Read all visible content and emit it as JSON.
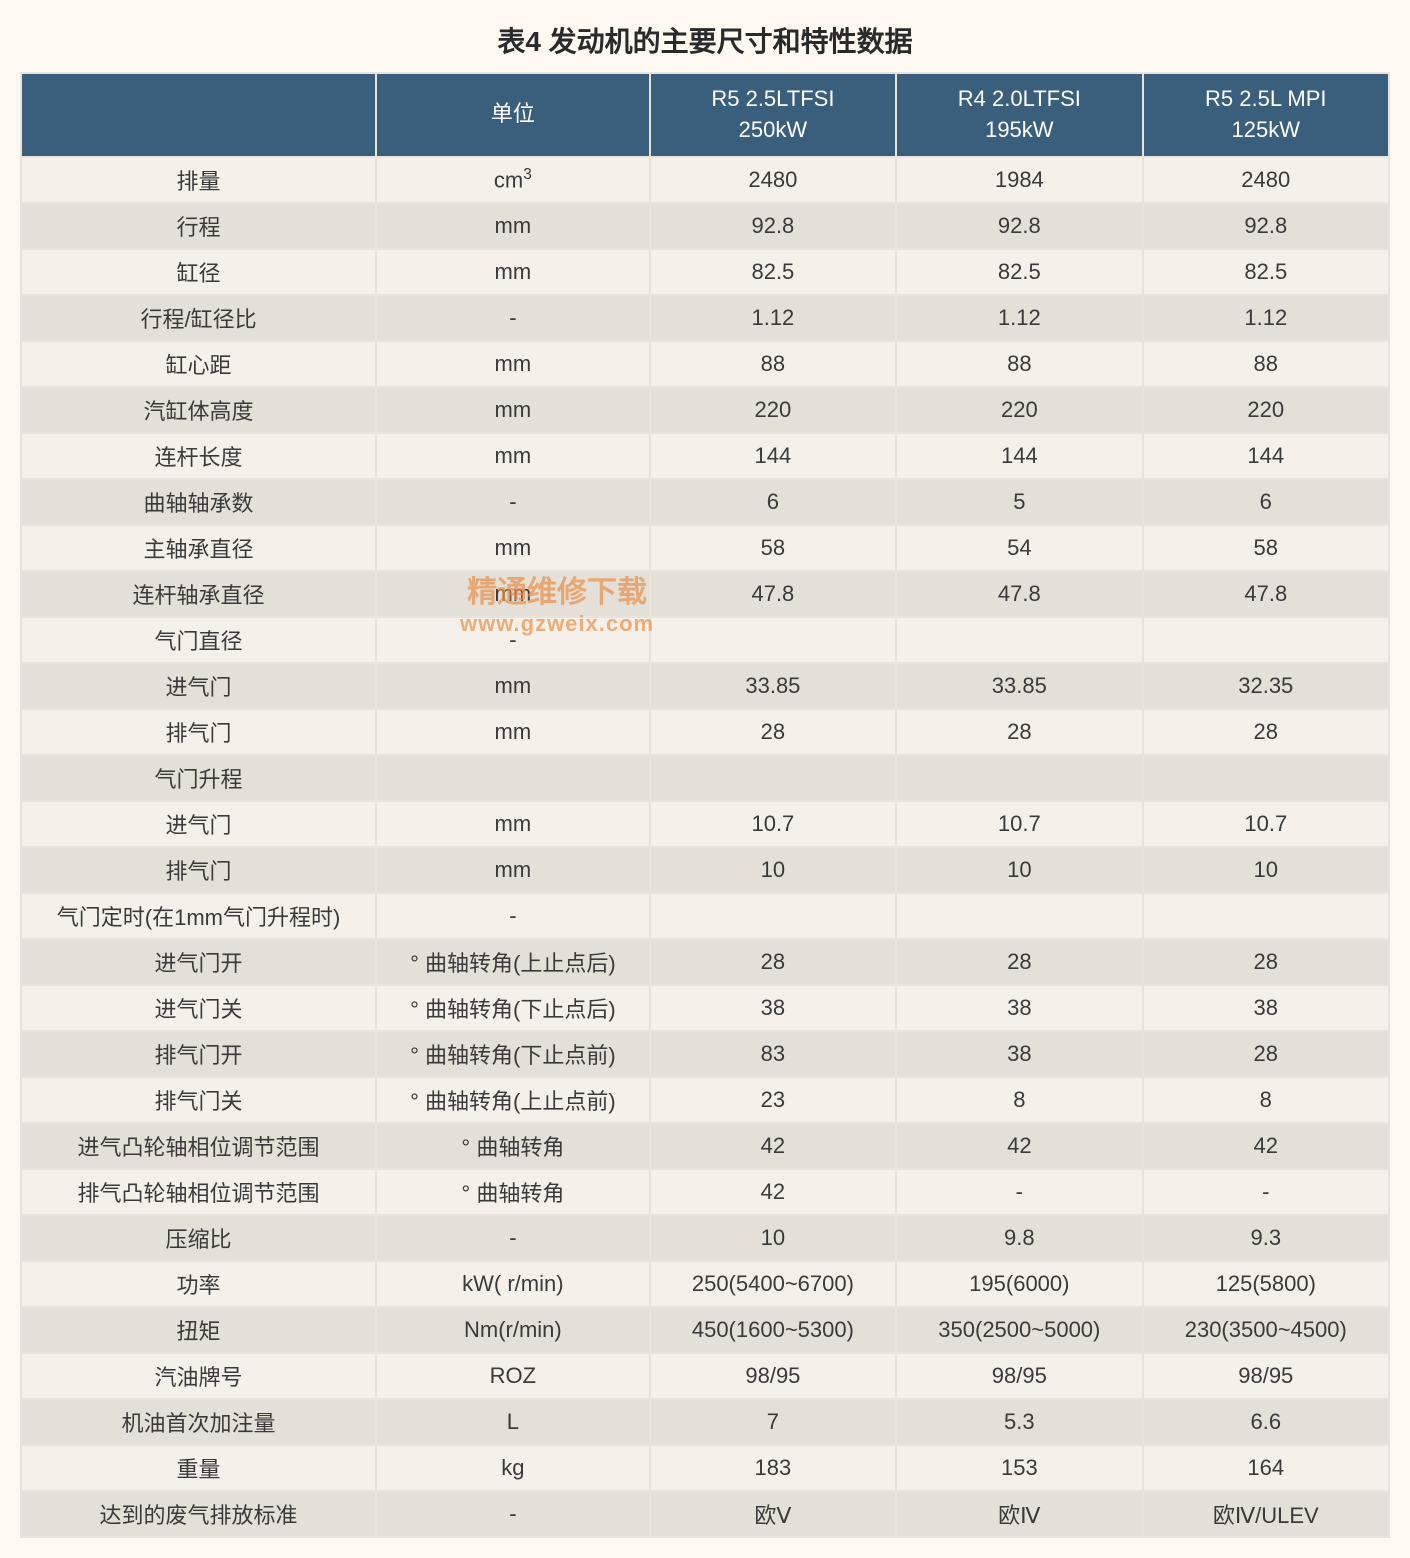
{
  "title": "表4  发动机的主要尺寸和特性数据",
  "headers": {
    "unit": "单位",
    "col1_line1": "R5 2.5LTFSI",
    "col1_line2": "250kW",
    "col2_line1": "R4 2.0LTFSI",
    "col2_line2": "195kW",
    "col3_line1": "R5 2.5L MPI",
    "col3_line2": "125kW"
  },
  "styling": {
    "header_bg": "#3a5f7d",
    "header_fg": "#ffffff",
    "row_odd_bg": "#f5f1ea",
    "row_even_bg": "#e4e0d8",
    "page_bg": "#fff9f2",
    "text_color": "#3a3a3a",
    "title_fontsize": 28,
    "cell_fontsize": 22,
    "watermark_color": "#e8904a",
    "col_widths_pct": [
      26,
      20,
      18,
      18,
      18
    ]
  },
  "watermark": {
    "line1": "精通维修下载",
    "line2": "www.gzweix.com"
  },
  "rows": [
    {
      "label": "排量",
      "unit_html": "cm<sup>3</sup>",
      "c1": "2480",
      "c2": "1984",
      "c3": "2480"
    },
    {
      "label": "行程",
      "unit": "mm",
      "c1": "92.8",
      "c2": "92.8",
      "c3": "92.8"
    },
    {
      "label": "缸径",
      "unit": "mm",
      "c1": "82.5",
      "c2": "82.5",
      "c3": "82.5"
    },
    {
      "label": "行程/缸径比",
      "unit": "-",
      "c1": "1.12",
      "c2": "1.12",
      "c3": "1.12"
    },
    {
      "label": "缸心距",
      "unit": "mm",
      "c1": "88",
      "c2": "88",
      "c3": "88"
    },
    {
      "label": "汽缸体高度",
      "unit": "mm",
      "c1": "220",
      "c2": "220",
      "c3": "220"
    },
    {
      "label": "连杆长度",
      "unit": "mm",
      "c1": "144",
      "c2": "144",
      "c3": "144"
    },
    {
      "label": "曲轴轴承数",
      "unit": "-",
      "c1": "6",
      "c2": "5",
      "c3": "6"
    },
    {
      "label": "主轴承直径",
      "unit": "mm",
      "c1": "58",
      "c2": "54",
      "c3": "58"
    },
    {
      "label": "连杆轴承直径",
      "unit": "mm",
      "c1": "47.8",
      "c2": "47.8",
      "c3": "47.8"
    },
    {
      "label": "气门直径",
      "unit": "-",
      "c1": "",
      "c2": "",
      "c3": ""
    },
    {
      "label": "进气门",
      "unit": "mm",
      "c1": "33.85",
      "c2": "33.85",
      "c3": "32.35"
    },
    {
      "label": "排气门",
      "unit": "mm",
      "c1": "28",
      "c2": "28",
      "c3": "28"
    },
    {
      "label": "气门升程",
      "unit": "",
      "c1": "",
      "c2": "",
      "c3": ""
    },
    {
      "label": "进气门",
      "unit": "mm",
      "c1": "10.7",
      "c2": "10.7",
      "c3": "10.7"
    },
    {
      "label": "排气门",
      "unit": "mm",
      "c1": "10",
      "c2": "10",
      "c3": "10"
    },
    {
      "label": "气门定时(在1mm气门升程时)",
      "unit": "-",
      "c1": "",
      "c2": "",
      "c3": ""
    },
    {
      "label": "进气门开",
      "unit": "°  曲轴转角(上止点后)",
      "c1": "28",
      "c2": "28",
      "c3": "28"
    },
    {
      "label": "进气门关",
      "unit": "°  曲轴转角(下止点后)",
      "c1": "38",
      "c2": "38",
      "c3": "38"
    },
    {
      "label": "排气门开",
      "unit": "°  曲轴转角(下止点前)",
      "c1": "83",
      "c2": "38",
      "c3": "28"
    },
    {
      "label": "排气门关",
      "unit": "°  曲轴转角(上止点前)",
      "c1": "23",
      "c2": "8",
      "c3": "8"
    },
    {
      "label": "进气凸轮轴相位调节范围",
      "unit": "°  曲轴转角",
      "c1": "42",
      "c2": "42",
      "c3": "42"
    },
    {
      "label": "排气凸轮轴相位调节范围",
      "unit": "°  曲轴转角",
      "c1": "42",
      "c2": "-",
      "c3": "-"
    },
    {
      "label": "压缩比",
      "unit": "-",
      "c1": "10",
      "c2": "9.8",
      "c3": "9.3"
    },
    {
      "label": "功率",
      "unit": "kW( r/min)",
      "c1": "250(5400~6700)",
      "c2": "195(6000)",
      "c3": "125(5800)"
    },
    {
      "label": "扭矩",
      "unit": "Nm(r/min)",
      "c1": "450(1600~5300)",
      "c2": "350(2500~5000)",
      "c3": "230(3500~4500)"
    },
    {
      "label": "汽油牌号",
      "unit": "ROZ",
      "c1": "98/95",
      "c2": "98/95",
      "c3": "98/95"
    },
    {
      "label": "机油首次加注量",
      "unit": "L",
      "c1": "7",
      "c2": "5.3",
      "c3": "6.6"
    },
    {
      "label": "重量",
      "unit": "kg",
      "c1": "183",
      "c2": "153",
      "c3": "164"
    },
    {
      "label": "达到的废气排放标准",
      "unit": "-",
      "c1": "欧Ⅴ",
      "c2": "欧Ⅳ",
      "c3": "欧Ⅳ/ULEV"
    }
  ]
}
